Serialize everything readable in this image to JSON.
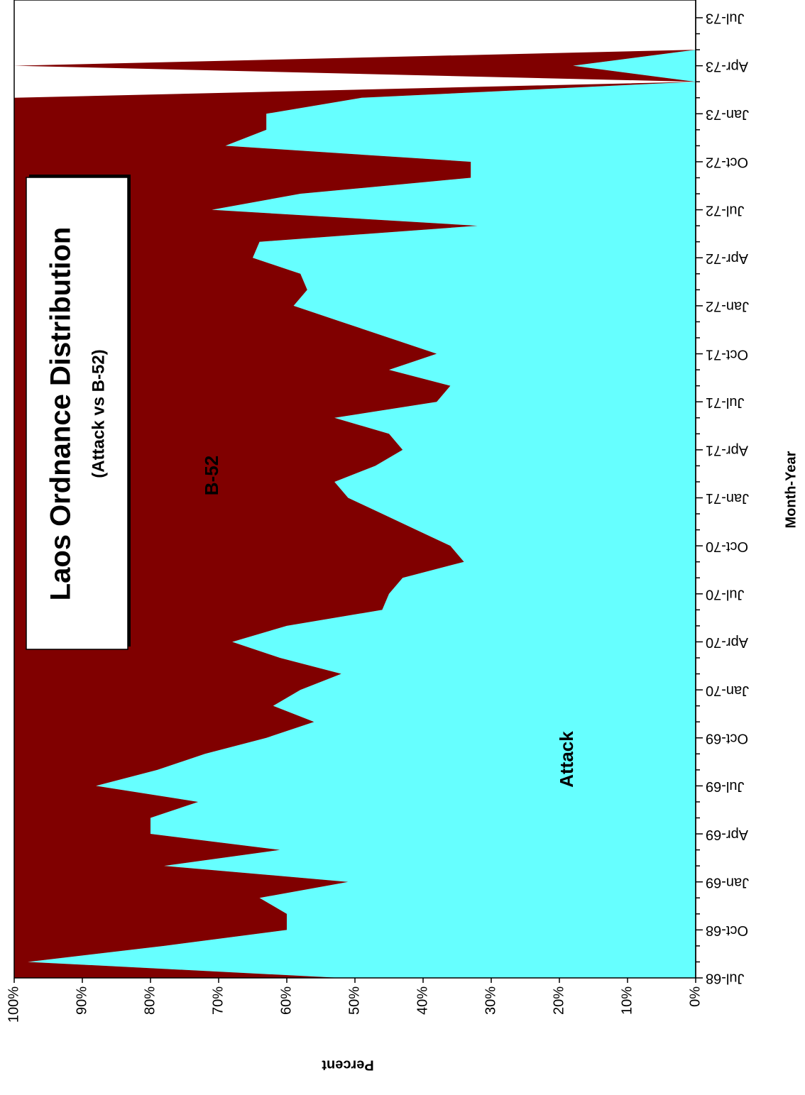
{
  "chart_data": {
    "type": "area",
    "stacked": true,
    "title": "Laos Ordnance Distribution",
    "subtitle": "(Attack vs B-52)",
    "x_label": "Month-Year",
    "y_label": "Percent",
    "categories": [
      "Jul-68",
      null,
      null,
      "Oct-68",
      null,
      null,
      "Jan-69",
      null,
      null,
      "Apr-69",
      null,
      null,
      "Jul-69",
      null,
      null,
      "Oct-69",
      null,
      null,
      "Jan-70",
      null,
      null,
      "Apr-70",
      null,
      null,
      "Jul-70",
      null,
      null,
      "Oct-70",
      null,
      null,
      "Jan-71",
      null,
      null,
      "Apr-71",
      null,
      null,
      "Jul-71",
      null,
      null,
      "Oct-71",
      null,
      null,
      "Jan-72",
      null,
      null,
      "Apr-72",
      null,
      null,
      "Jul-72",
      null,
      null,
      "Oct-72",
      null,
      null,
      "Jan-73",
      null,
      null,
      "Apr-73",
      null,
      null,
      "Jul-73"
    ],
    "series": [
      {
        "name": "Attack",
        "color": "#66ffff",
        "values": [
          52,
          98,
          78,
          60,
          60,
          64,
          51,
          78,
          61,
          80,
          80,
          73,
          88,
          79,
          72,
          63,
          56,
          62,
          58,
          52,
          61,
          68,
          60,
          46,
          45,
          43,
          34,
          36,
          41,
          46,
          51,
          53,
          47,
          43,
          45,
          53,
          38,
          36,
          45,
          38,
          45,
          52,
          59,
          57,
          58,
          65,
          64,
          32,
          71,
          58,
          33,
          33,
          69,
          63,
          63,
          49,
          0,
          18,
          0,
          null,
          null
        ]
      },
      {
        "name": "B-52",
        "color": "#800000",
        "values": [
          48,
          2,
          22,
          40,
          40,
          36,
          49,
          22,
          39,
          20,
          20,
          27,
          12,
          21,
          28,
          37,
          44,
          38,
          42,
          48,
          39,
          32,
          40,
          54,
          55,
          57,
          66,
          64,
          59,
          54,
          49,
          47,
          53,
          57,
          55,
          47,
          62,
          64,
          55,
          62,
          55,
          48,
          41,
          43,
          42,
          35,
          36,
          68,
          29,
          42,
          67,
          67,
          31,
          37,
          37,
          51,
          0,
          82,
          0,
          null,
          null
        ]
      }
    ],
    "ylim": [
      0,
      100
    ],
    "yticks": [
      {
        "value": 0,
        "label": "0%"
      },
      {
        "value": 10,
        "label": "10%"
      },
      {
        "value": 20,
        "label": "20%"
      },
      {
        "value": 30,
        "label": "30%"
      },
      {
        "value": 40,
        "label": "40%"
      },
      {
        "value": 50,
        "label": "50%"
      },
      {
        "value": 60,
        "label": "60%"
      },
      {
        "value": 70,
        "label": "70%"
      },
      {
        "value": 80,
        "label": "80%"
      },
      {
        "value": 90,
        "label": "90%"
      },
      {
        "value": 100,
        "label": "100%"
      }
    ],
    "rotation": -90
  }
}
